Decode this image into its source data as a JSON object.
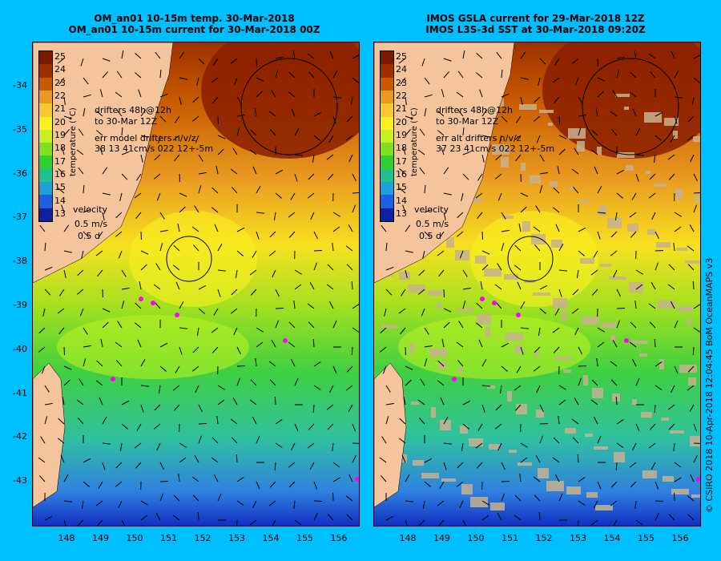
{
  "left": {
    "title1": "OM_an01 10-15m temp. 30-Mar-2018",
    "title2": "OM_an01 10-15m current for 30-Mar-2018 00Z",
    "drifters1": "drifters 48h@12h",
    "drifters2": "to 30-Mar 12Z",
    "err1": "err model drifters n/v/z",
    "err2": "38 13 41cm/s 022 12+-5m"
  },
  "right": {
    "title1": "IMOS GSLA current for 29-Mar-2018 12Z",
    "title2": "IMOS L3S-3d SST at 30-Mar-2018 09:20Z",
    "drifters1": "drifters 48h@12h",
    "drifters2": "to 30-Mar 12Z",
    "err1": "err alt drifters n/v/z",
    "err2": "37 23 41cm/s 022 12+-5m"
  },
  "legend": {
    "velocity": "velocity",
    "scale": "0.5 m/s",
    "days": "0.5 d"
  },
  "colorbar": {
    "title": "temperature (°C)",
    "ticks": [
      "25",
      "24",
      "23",
      "22",
      "21",
      "20",
      "19",
      "18",
      "17",
      "16",
      "15",
      "14",
      "13"
    ],
    "colors": [
      "#7a1a00",
      "#9e3000",
      "#c85a00",
      "#e89a20",
      "#f8c830",
      "#f8f020",
      "#c8f020",
      "#80e020",
      "#30d030",
      "#20c090",
      "#20a0d8",
      "#2060e0",
      "#1020a0"
    ]
  },
  "axes": {
    "lat": [
      "-34",
      "-35",
      "-36",
      "-37",
      "-38",
      "-39",
      "-40",
      "-41",
      "-42",
      "-43"
    ],
    "lon": [
      "148",
      "149",
      "150",
      "151",
      "152",
      "153",
      "154",
      "155",
      "156"
    ]
  },
  "credit": "© CSIRO 2018   10-Apr-2018 12:04:45 BoM OceanMAPS v3",
  "colors": {
    "background": "#00bfff",
    "land": "#f4c49c",
    "drifter": "#ff00ff"
  }
}
